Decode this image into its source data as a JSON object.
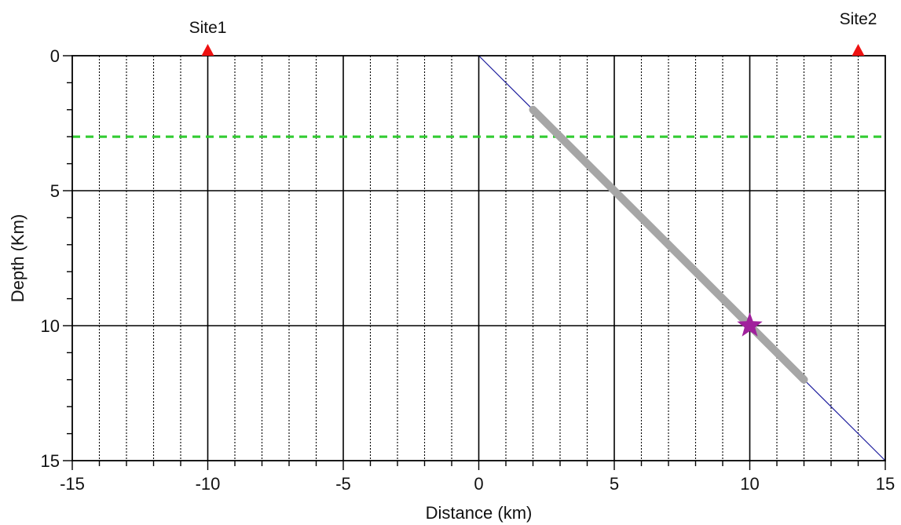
{
  "chart_data": {
    "type": "line",
    "xlabel": "Distance (km)",
    "ylabel": "Depth (Km)",
    "xlim": [
      -15,
      15
    ],
    "ylim": [
      0,
      15
    ],
    "y_inverted": true,
    "x_major_ticks": [
      -15,
      -10,
      -5,
      0,
      5,
      10,
      15
    ],
    "x_tick_labels": [
      "-15",
      "-10",
      "-5",
      "0",
      "5",
      "10",
      "15"
    ],
    "y_major_ticks": [
      0,
      5,
      10,
      15
    ],
    "y_tick_labels": [
      "0",
      "5",
      "10",
      "15"
    ],
    "x_minor_step": 1,
    "y_minor_step": 1,
    "grid": true,
    "sites": [
      {
        "label": "Site1",
        "x": -10
      },
      {
        "label": "Site2",
        "x": 14
      }
    ],
    "fault_trace": {
      "points": [
        [
          0,
          0
        ],
        [
          15,
          15
        ]
      ],
      "color": "#1a1a9c"
    },
    "rupture": {
      "points": [
        [
          2,
          2
        ],
        [
          12,
          12
        ]
      ],
      "color": "#a6a6a6"
    },
    "hypocenter": {
      "x": 10,
      "y": 10,
      "color": "#a0209c",
      "icon": "star-icon"
    },
    "reference_depth": {
      "y": 3,
      "color": "#33cc33",
      "style": "dashed"
    },
    "site_marker_color": "#ee1111"
  }
}
